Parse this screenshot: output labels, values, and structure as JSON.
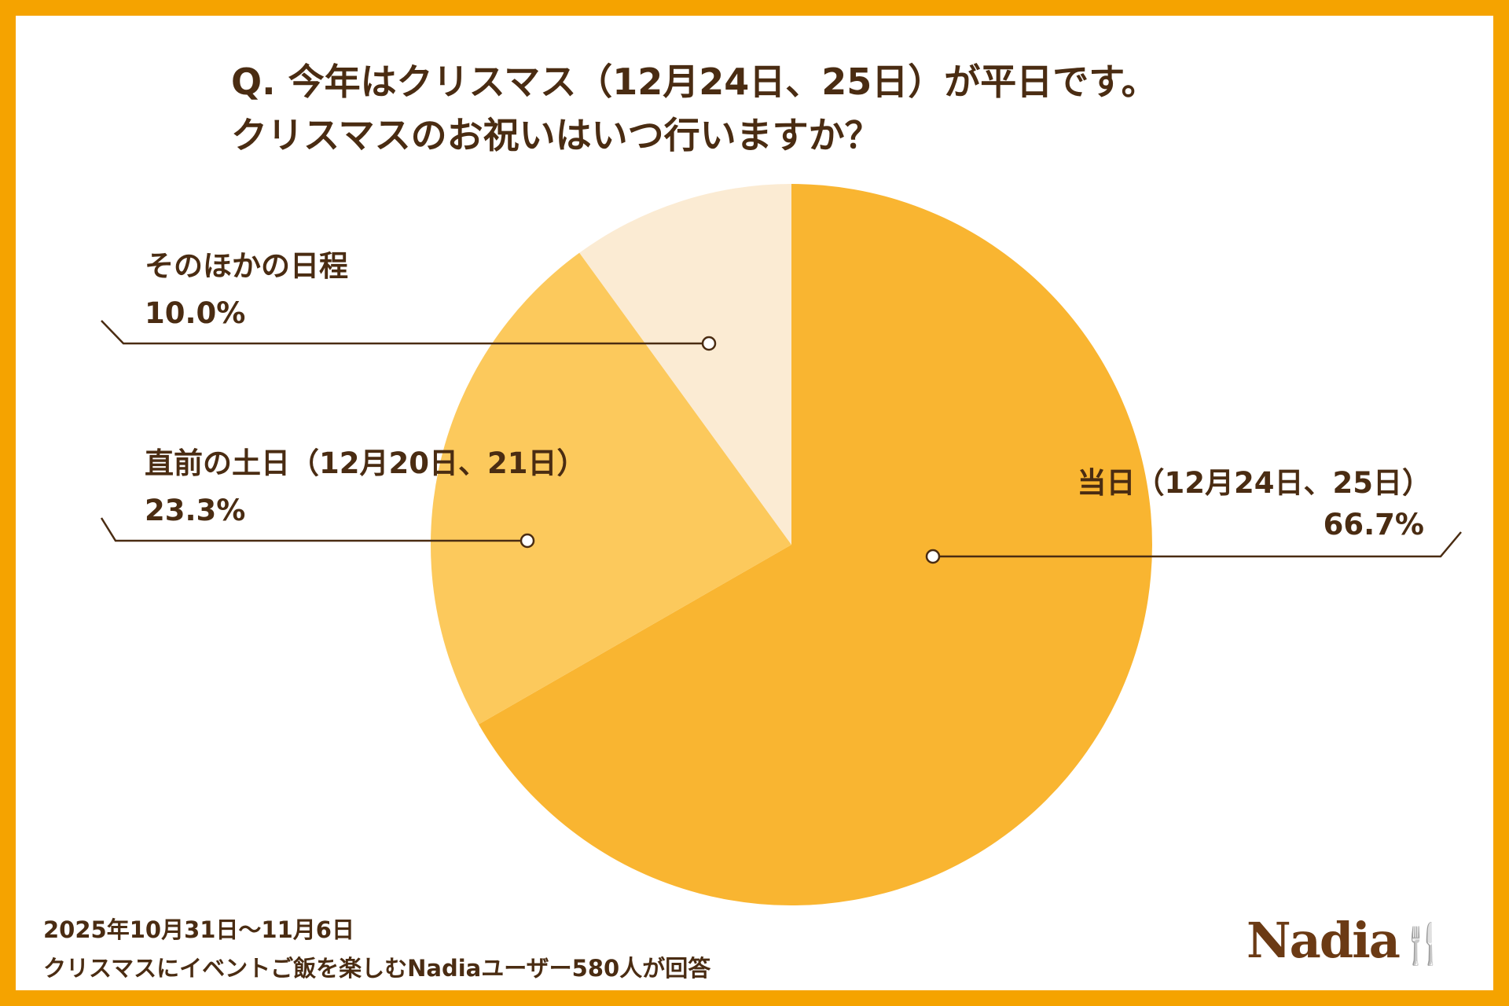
{
  "chart_data": {
    "type": "pie",
    "title_lines": [
      "Q. 今年はクリスマス（12月24日、25日）が平日です。",
      "クリスマスのお祝いはいつ行いますか？"
    ],
    "slices": [
      {
        "label": "当日（12月24日、25日）",
        "value": 66.7,
        "value_label": "66.7%",
        "color": "#F9B531"
      },
      {
        "label": "直前の土日（12月20日、21日）",
        "value": 23.3,
        "value_label": "23.3%",
        "color": "#FCC95C"
      },
      {
        "label": "そのほかの日程",
        "value": 10.0,
        "value_label": "10.0%",
        "color": "#FBEBD3"
      }
    ],
    "start": "top",
    "direction": "clockwise"
  },
  "footer": {
    "date": "2025年10月31日〜11月6日",
    "note": "クリスマスにイベントご飯を楽しむNadiaユーザー580人が回答"
  },
  "logo": {
    "text": "Nadia"
  },
  "colors": {
    "border": "#F5A300",
    "text": "#4a2c12"
  }
}
